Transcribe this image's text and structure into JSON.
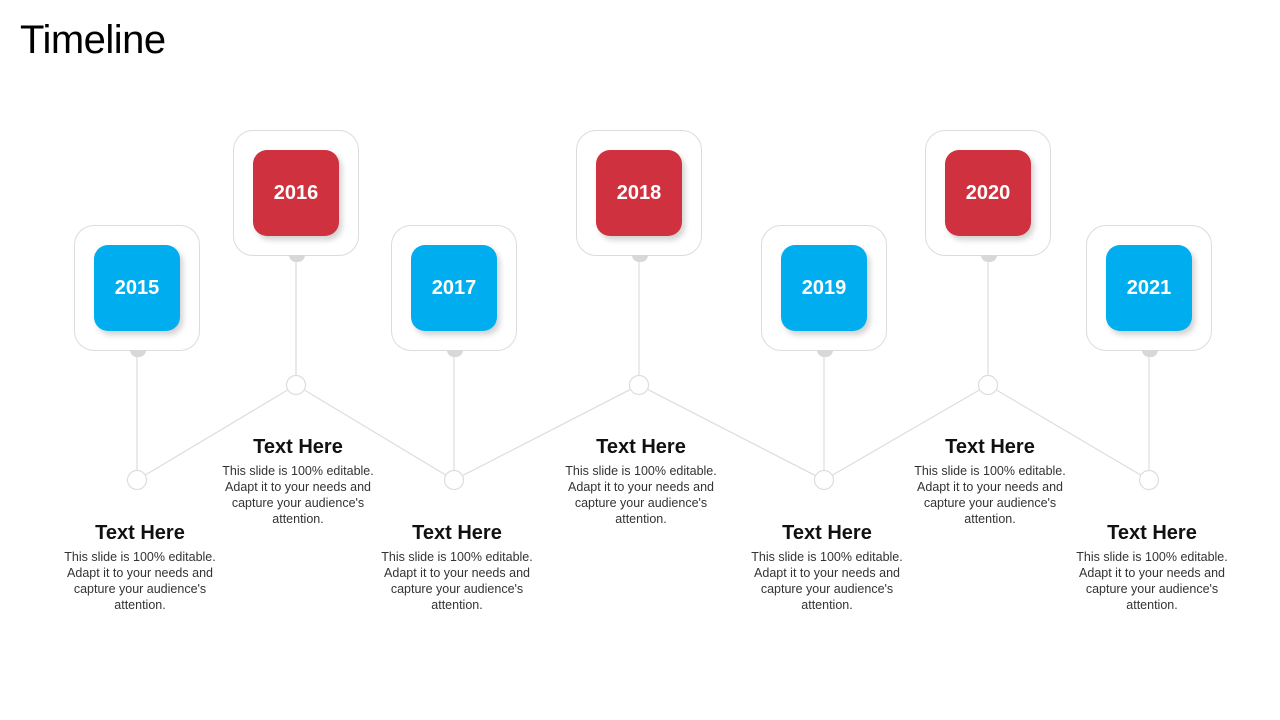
{
  "title": "Timeline",
  "colors": {
    "low": "#00AEEF",
    "high": "#D0313F",
    "line": "#dddddd"
  },
  "items": [
    {
      "year": "2015",
      "heading": "Text Here",
      "desc": "This slide is 100% editable. Adapt it to your needs and capture your audience's attention.",
      "level": "low"
    },
    {
      "year": "2016",
      "heading": "Text Here",
      "desc": "This slide is 100% editable. Adapt it to your needs and capture your audience's attention.",
      "level": "high"
    },
    {
      "year": "2017",
      "heading": "Text Here",
      "desc": "This slide is 100% editable. Adapt it to your needs and capture your audience's attention.",
      "level": "low"
    },
    {
      "year": "2018",
      "heading": "Text Here",
      "desc": "This slide is 100% editable. Adapt it to your needs and capture your audience's attention.",
      "level": "high"
    },
    {
      "year": "2019",
      "heading": "Text Here",
      "desc": "This slide is 100% editable. Adapt it to your needs and capture your audience's attention.",
      "level": "low"
    },
    {
      "year": "2020",
      "heading": "Text Here",
      "desc": "This slide is 100% editable. Adapt it to your needs and capture your audience's attention.",
      "level": "high"
    },
    {
      "year": "2021",
      "heading": "Text Here",
      "desc": "This slide is 100% editable. Adapt it to your needs and capture your audience's attention.",
      "level": "low"
    }
  ]
}
